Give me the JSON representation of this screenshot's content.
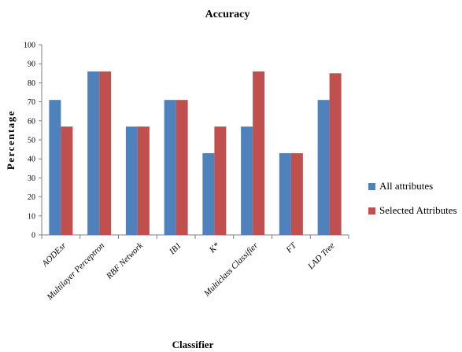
{
  "chart_data": {
    "type": "bar",
    "title": "Accuracy",
    "xlabel": "Classifier",
    "ylabel": "Percentage",
    "categories": [
      "AODEsr",
      "Multilayer Perceptron",
      "RBF Network",
      "IB1",
      "K*",
      "Multiclass Classifier",
      "FT",
      "LAD Tree"
    ],
    "series": [
      {
        "name": "All attributes",
        "color": "#4F81BD",
        "values": [
          71,
          86,
          57,
          71,
          43,
          57,
          43,
          71
        ]
      },
      {
        "name": "Selected Attributes",
        "color": "#C0504D",
        "values": [
          57,
          86,
          57,
          71,
          57,
          86,
          43,
          85
        ]
      }
    ],
    "ylim": [
      0,
      100
    ],
    "yticks": [
      0,
      10,
      20,
      30,
      40,
      50,
      60,
      70,
      80,
      90,
      100
    ],
    "grid": false,
    "legend_position": "right"
  }
}
